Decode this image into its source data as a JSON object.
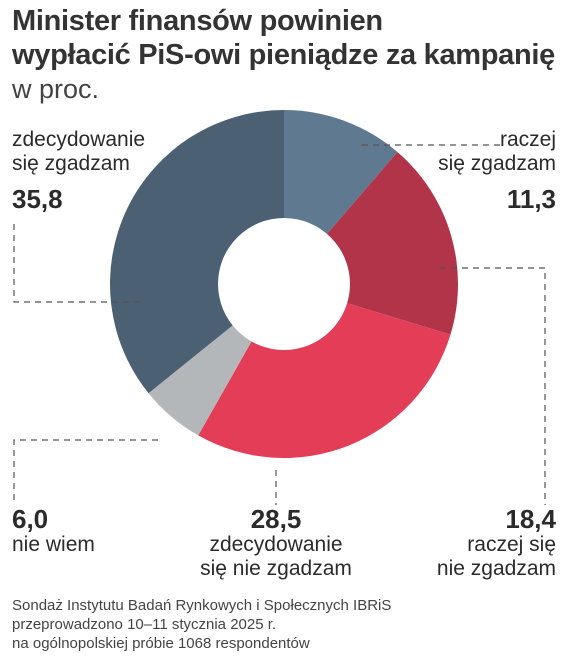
{
  "title_line1": "Minister finansów powinien",
  "title_line2": "wypłacić PiS-owi pieniądze za kampanię",
  "subtitle": "w proc.",
  "chart_data": {
    "type": "pie",
    "title": "Minister finansów powinien wypłacić PiS-owi pieniądze za kampanię",
    "unit": "w proc.",
    "slices": [
      {
        "label": "raczej się zgadzam",
        "value": 11.3,
        "value_text": "11,3",
        "color": "#5f7a90"
      },
      {
        "label": "raczej się nie zgadzam",
        "value": 18.4,
        "value_text": "18,4",
        "color": "#b23448"
      },
      {
        "label": "zdecydowanie się nie zgadzam",
        "value": 28.5,
        "value_text": "28,5",
        "color": "#e33d57"
      },
      {
        "label": "nie wiem",
        "value": 6.0,
        "value_text": "6,0",
        "color": "#b4b7ba"
      },
      {
        "label": "zdecydowanie się zgadzam",
        "value": 35.8,
        "value_text": "35,8",
        "color": "#4b6073"
      }
    ]
  },
  "labels": {
    "zz": {
      "line1": "zdecydowanie",
      "line2": "się zgadzam"
    },
    "rz": {
      "line1": "raczej",
      "line2": "się zgadzam"
    },
    "rnz": {
      "line1": "raczej się",
      "line2": "nie zgadzam"
    },
    "znz": {
      "line1": "zdecydowanie",
      "line2": "się nie zgadzam"
    },
    "nw": {
      "line1": "nie wiem"
    }
  },
  "footnote": {
    "line1": "Sondaż Instytutu Badań Rynkowych i Społecznych IBRiS",
    "line2": "przeprowadzono 10–11 stycznia 2025 r.",
    "line3": "na ogólnopolskiej próbie 1068 respondentów"
  }
}
